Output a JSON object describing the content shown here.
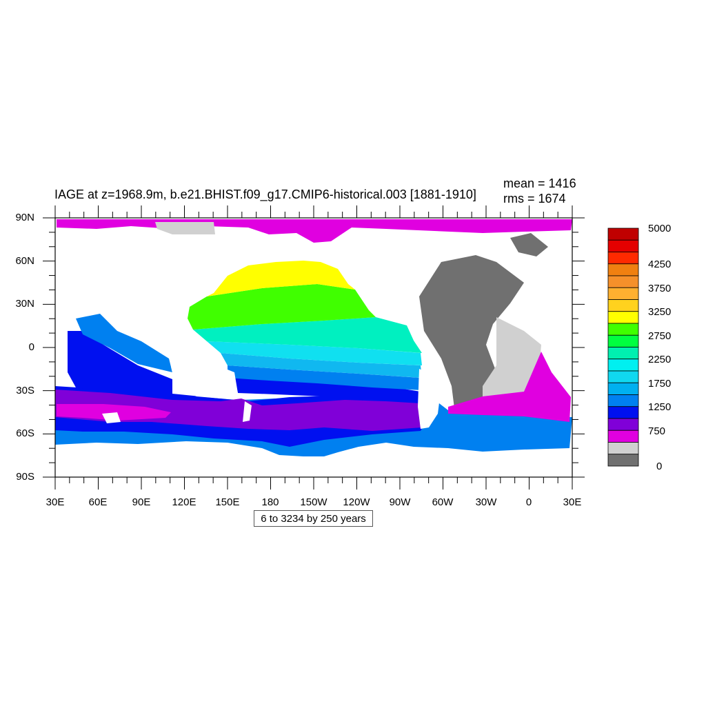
{
  "map": {
    "title": "IAGE at z=1968.9m, b.e21.BHIST.f09_g17.CMIP6-historical.003 [1881-1910]",
    "mean_label": "mean = 1416",
    "rms_label": "rms = 1674",
    "contour_info": "6 to 3234 by 250 years",
    "lat_labels": [
      "90N",
      "60N",
      "30N",
      "0",
      "30S",
      "60S",
      "90S"
    ],
    "lon_labels": [
      "30E",
      "60E",
      "90E",
      "120E",
      "150E",
      "180",
      "150W",
      "120W",
      "90W",
      "60W",
      "30W",
      "0",
      "30E"
    ],
    "projection": "cylindrical equidistant, centered 210E",
    "colorbar": {
      "labels": [
        "5000",
        "4250",
        "3750",
        "3250",
        "2750",
        "2250",
        "1750",
        "1250",
        "750",
        "0"
      ],
      "colors": [
        "#c00000",
        "#e40000",
        "#ff2a00",
        "#f08010",
        "#f5902a",
        "#ffb030",
        "#ffd21e",
        "#ffff00",
        "#40ff00",
        "#00ff40",
        "#00f0b0",
        "#00f0f0",
        "#10d8f0",
        "#00b0f0",
        "#0080f0",
        "#0010f0",
        "#8000d8",
        "#e000e0",
        "#d0d0d0",
        "#707070"
      ]
    },
    "region_colors": {
      "land_white": "#ffffff",
      "young_gray": "#707070",
      "light_gray": "#d0d0d0",
      "magenta": "#e000e0",
      "purple": "#8000d8",
      "blue": "#0010f0",
      "mid_blue": "#0080f0",
      "sky": "#10b8f0",
      "cyan": "#10e0f0",
      "teal": "#00f0c0",
      "green": "#40ff00",
      "bright_green": "#00ff40",
      "yellow": "#ffff00"
    }
  }
}
